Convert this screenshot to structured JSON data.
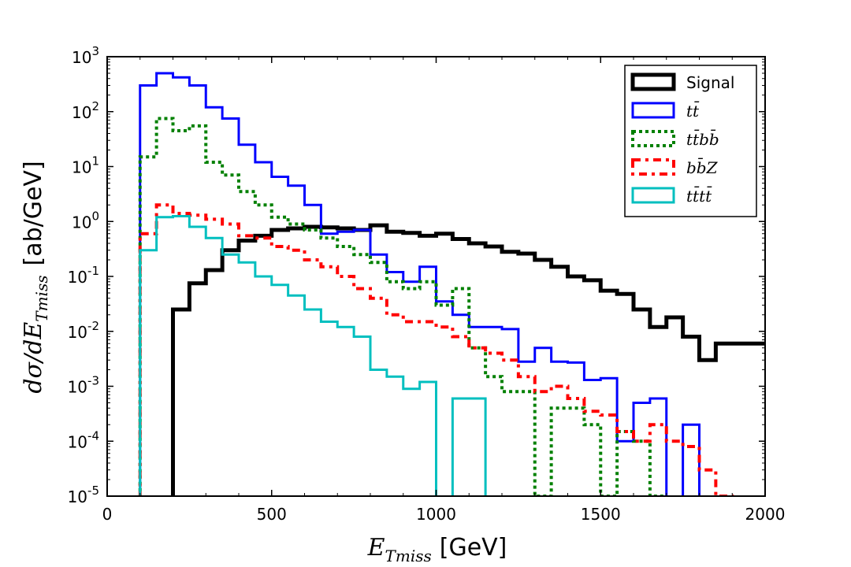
{
  "chart_data": {
    "type": "line",
    "style": "step-histogram",
    "title": "",
    "xlabel": "E_Tmiss [GeV]",
    "xlabel_math": "E",
    "xlabel_sub": "Tmiss",
    "xlabel_unit": "[GeV]",
    "ylabel_math": "dσ/dE",
    "ylabel_sub": "Tmiss",
    "ylabel_unit": "[ab/GeV]",
    "xlim": [
      0,
      2000
    ],
    "ylim_log10": [
      -5,
      3
    ],
    "yscale": "log",
    "x_ticks": [
      "0",
      "500",
      "1000",
      "1500",
      "2000"
    ],
    "x_tick_values": [
      0,
      500,
      1000,
      1500,
      2000
    ],
    "y_tick_base": "10",
    "y_tick_exponents": [
      "-5",
      "-4",
      "-3",
      "-2",
      "-1",
      "0",
      "1",
      "2",
      "3"
    ],
    "legend_position": "top-right",
    "bin_edges": [
      0,
      50,
      100,
      150,
      200,
      250,
      300,
      350,
      400,
      450,
      500,
      550,
      600,
      650,
      700,
      750,
      800,
      850,
      900,
      950,
      1000,
      1050,
      1100,
      1150,
      1200,
      1250,
      1300,
      1350,
      1400,
      1450,
      1500,
      1550,
      1600,
      1650,
      1700,
      1750,
      1800,
      1850,
      1900,
      1950,
      2000
    ],
    "series": [
      {
        "name": "Signal",
        "label": "Signal",
        "math": false,
        "color": "#000000",
        "dash": "solid",
        "width": 5,
        "values": [
          0,
          0,
          0,
          0,
          0.025,
          0.075,
          0.13,
          0.3,
          0.45,
          0.55,
          0.7,
          0.75,
          0.8,
          0.78,
          0.75,
          0.7,
          0.85,
          0.65,
          0.62,
          0.55,
          0.6,
          0.48,
          0.4,
          0.35,
          0.28,
          0.26,
          0.2,
          0.15,
          0.1,
          0.085,
          0.055,
          0.048,
          0.025,
          0.012,
          0.018,
          0.008,
          0.003,
          0.006,
          0.006,
          0.006
        ]
      },
      {
        "name": "ttbar",
        "label": "tt̄",
        "math": true,
        "color": "#0000ff",
        "dash": "solid",
        "width": 3,
        "values": [
          0,
          0,
          300,
          500,
          420,
          300,
          120,
          75,
          25,
          12,
          6.5,
          4.5,
          2,
          0.6,
          0.65,
          0.7,
          0.25,
          0.12,
          0.08,
          0.15,
          0.035,
          0.02,
          0.012,
          0.012,
          0.011,
          0.0028,
          0.005,
          0.0028,
          0.0027,
          0.0013,
          0.0014,
          0.0001,
          0.0005,
          0.0006,
          0,
          0.0002,
          0,
          0,
          0,
          0
        ]
      },
      {
        "name": "ttbarbbbar",
        "label": "tt̄bb̄",
        "math": true,
        "color": "#008000",
        "dash": "dotted",
        "width": 4,
        "values": [
          0,
          0,
          15,
          75,
          45,
          55,
          12,
          7,
          3.5,
          2,
          1.2,
          0.9,
          0.7,
          0.5,
          0.35,
          0.25,
          0.18,
          0.08,
          0.06,
          0.08,
          0.03,
          0.06,
          0.005,
          0.0015,
          0.0008,
          0.0008,
          1e-05,
          0.0004,
          0.0004,
          0.0002,
          1e-05,
          0.00015,
          0.0001,
          1e-05,
          0,
          0,
          0,
          0,
          0,
          0
        ]
      },
      {
        "name": "bbbarZ",
        "label": "bb̄Z",
        "math": true,
        "color": "#ff0000",
        "dash": "dashdot",
        "width": 4,
        "values": [
          0,
          0,
          0.6,
          2,
          1.4,
          1.3,
          1.1,
          0.9,
          0.55,
          0.5,
          0.35,
          0.3,
          0.2,
          0.15,
          0.1,
          0.06,
          0.04,
          0.02,
          0.015,
          0.015,
          0.012,
          0.008,
          0.005,
          0.004,
          0.003,
          0.0015,
          0.0008,
          0.001,
          0.0006,
          0.00035,
          0.0003,
          0.00015,
          0.0001,
          0.0002,
          0.0001,
          8e-05,
          3e-05,
          1e-05,
          0,
          0
        ]
      },
      {
        "name": "tttt",
        "label": "tt̄tt̄",
        "math": true,
        "color": "#00bfbf",
        "dash": "solid",
        "width": 3,
        "values": [
          0,
          0,
          0.3,
          1.2,
          1.25,
          0.8,
          0.5,
          0.25,
          0.18,
          0.1,
          0.07,
          0.045,
          0.025,
          0.015,
          0.012,
          0.008,
          0.002,
          0.0015,
          0.0009,
          0.0012,
          0,
          0.0006,
          0.0006,
          0,
          0,
          0,
          0,
          0,
          0,
          0,
          0,
          0,
          0,
          0,
          0,
          0,
          0,
          0,
          0,
          0
        ]
      }
    ]
  }
}
